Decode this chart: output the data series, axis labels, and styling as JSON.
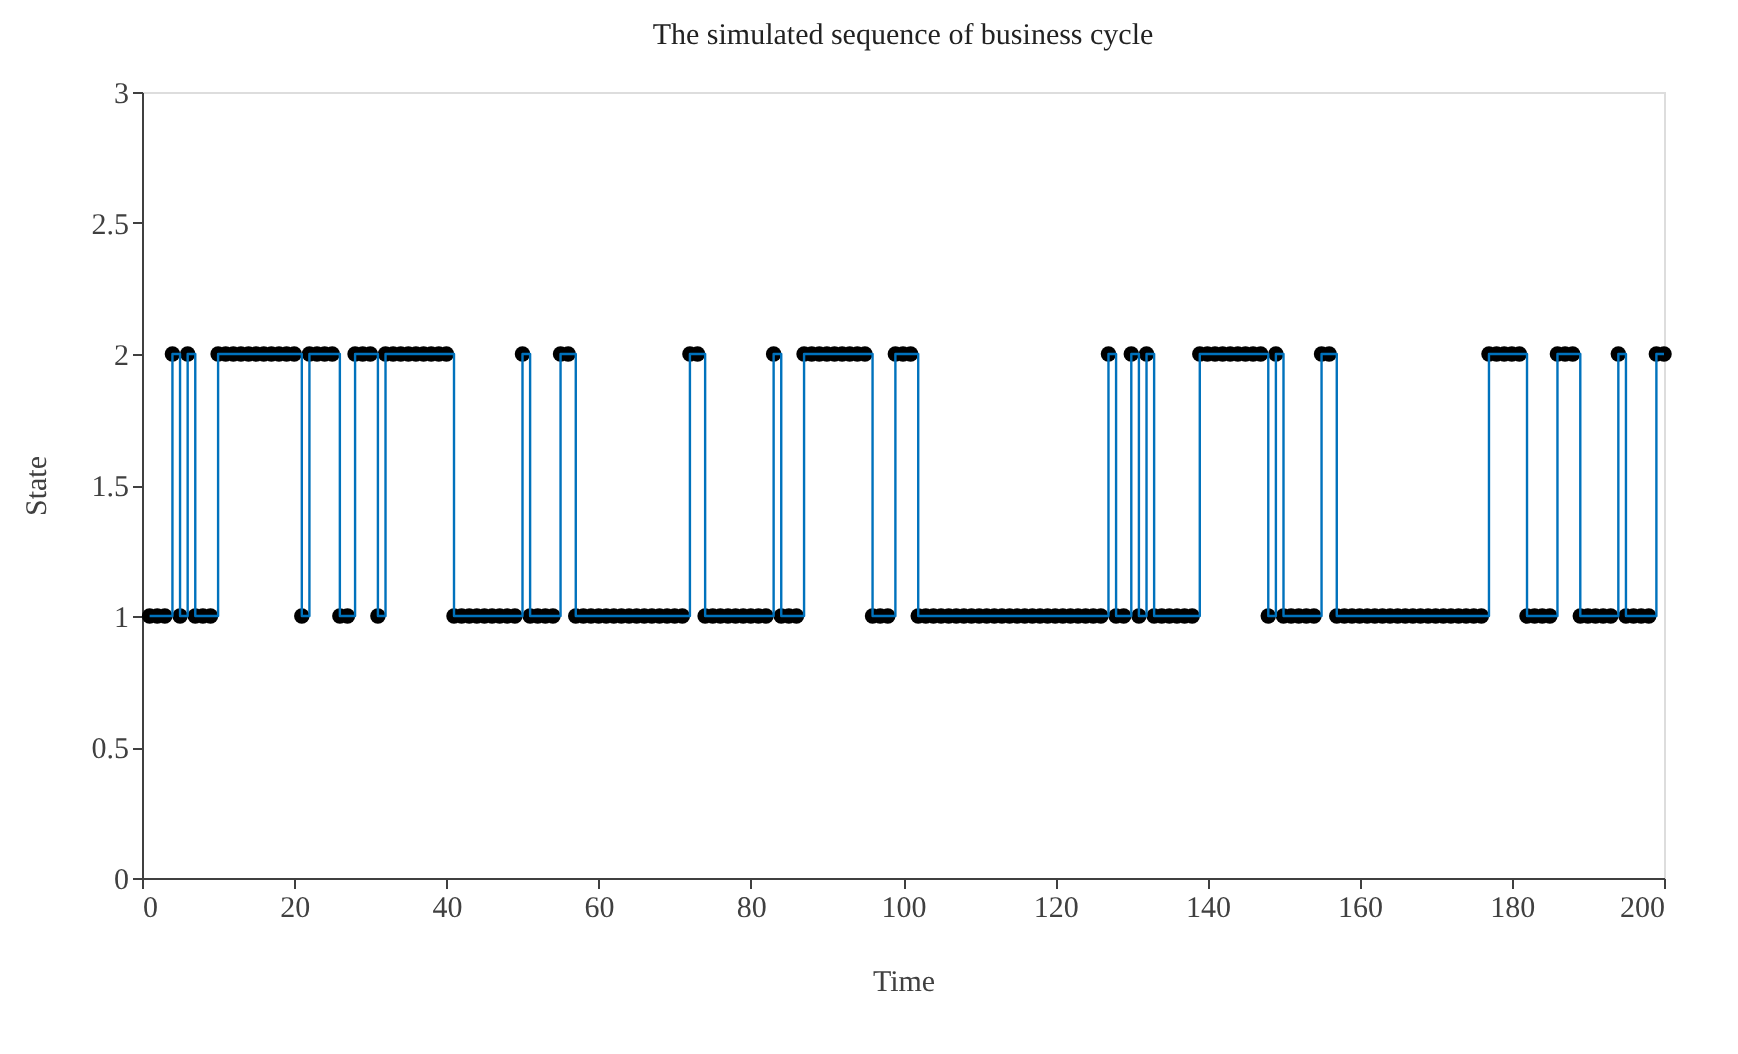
{
  "chart_data": {
    "type": "step",
    "title": "The simulated sequence of business cycle",
    "xlabel": "Time",
    "ylabel": "State",
    "x": [
      1,
      2,
      3,
      4,
      5,
      6,
      7,
      8,
      9,
      10,
      11,
      12,
      13,
      14,
      15,
      16,
      17,
      18,
      19,
      20,
      21,
      22,
      23,
      24,
      25,
      26,
      27,
      28,
      29,
      30,
      31,
      32,
      33,
      34,
      35,
      36,
      37,
      38,
      39,
      40,
      41,
      42,
      43,
      44,
      45,
      46,
      47,
      48,
      49,
      50,
      51,
      52,
      53,
      54,
      55,
      56,
      57,
      58,
      59,
      60,
      61,
      62,
      63,
      64,
      65,
      66,
      67,
      68,
      69,
      70,
      71,
      72,
      73,
      74,
      75,
      76,
      77,
      78,
      79,
      80,
      81,
      82,
      83,
      84,
      85,
      86,
      87,
      88,
      89,
      90,
      91,
      92,
      93,
      94,
      95,
      96,
      97,
      98,
      99,
      100,
      101,
      102,
      103,
      104,
      105,
      106,
      107,
      108,
      109,
      110,
      111,
      112,
      113,
      114,
      115,
      116,
      117,
      118,
      119,
      120,
      121,
      122,
      123,
      124,
      125,
      126,
      127,
      128,
      129,
      130,
      131,
      132,
      133,
      134,
      135,
      136,
      137,
      138,
      139,
      140,
      141,
      142,
      143,
      144,
      145,
      146,
      147,
      148,
      149,
      150,
      151,
      152,
      153,
      154,
      155,
      156,
      157,
      158,
      159,
      160,
      161,
      162,
      163,
      164,
      165,
      166,
      167,
      168,
      169,
      170,
      171,
      172,
      173,
      174,
      175,
      176,
      177,
      178,
      179,
      180,
      181,
      182,
      183,
      184,
      185,
      186,
      187,
      188,
      189,
      190,
      191,
      192,
      193,
      194,
      195,
      196,
      197,
      198,
      199,
      200
    ],
    "series": [
      {
        "color": "#0072bd",
        "values": [
          1,
          1,
          1,
          2,
          1,
          2,
          1,
          1,
          1,
          2,
          2,
          2,
          2,
          2,
          2,
          2,
          2,
          2,
          2,
          2,
          1,
          2,
          2,
          2,
          2,
          1,
          1,
          2,
          2,
          2,
          1,
          2,
          2,
          2,
          2,
          2,
          2,
          2,
          2,
          2,
          1,
          1,
          1,
          1,
          1,
          1,
          1,
          1,
          1,
          2,
          1,
          1,
          1,
          1,
          2,
          2,
          1,
          1,
          1,
          1,
          1,
          1,
          1,
          1,
          1,
          1,
          1,
          1,
          1,
          1,
          1,
          2,
          2,
          1,
          1,
          1,
          1,
          1,
          1,
          1,
          1,
          1,
          2,
          1,
          1,
          1,
          2,
          2,
          2,
          2,
          2,
          2,
          2,
          2,
          2,
          1,
          1,
          1,
          2,
          2,
          2,
          1,
          1,
          1,
          1,
          1,
          1,
          1,
          1,
          1,
          1,
          1,
          1,
          1,
          1,
          1,
          1,
          1,
          1,
          1,
          1,
          1,
          1,
          1,
          1,
          1,
          2,
          1,
          1,
          2,
          1,
          2,
          1,
          1,
          1,
          1,
          1,
          1,
          2,
          2,
          2,
          2,
          2,
          2,
          2,
          2,
          2,
          1,
          2,
          1,
          1,
          1,
          1,
          1,
          2,
          2,
          1,
          1,
          1,
          1,
          1,
          1,
          1,
          1,
          1,
          1,
          1,
          1,
          1,
          1,
          1,
          1,
          1,
          1,
          1,
          1,
          2,
          2,
          2,
          2,
          2,
          1,
          1,
          1,
          1,
          2,
          2,
          2,
          1,
          1,
          1,
          1,
          1,
          2,
          1,
          1,
          1,
          1,
          2,
          2
        ]
      }
    ],
    "xlim": [
      0,
      200
    ],
    "xticks": [
      0,
      20,
      40,
      60,
      80,
      100,
      120,
      140,
      160,
      180,
      200
    ],
    "ylim": [
      0,
      3
    ],
    "yticks": [
      0,
      0.5,
      1,
      1.5,
      2,
      2.5,
      3
    ],
    "marker": "circle",
    "grid": false
  }
}
